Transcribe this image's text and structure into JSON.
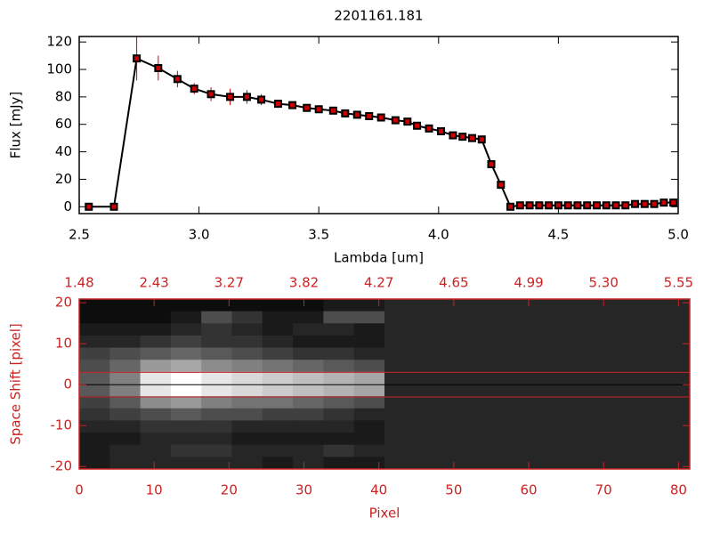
{
  "chart_data": [
    {
      "type": "line",
      "title": "2201161.181",
      "xlabel": "Lambda [um]",
      "ylabel": "Flux [mJy]",
      "x": [
        2.54,
        2.645,
        2.74,
        2.83,
        2.91,
        2.98,
        3.05,
        3.13,
        3.2,
        3.26,
        3.33,
        3.39,
        3.45,
        3.5,
        3.56,
        3.61,
        3.66,
        3.71,
        3.76,
        3.82,
        3.87,
        3.91,
        3.96,
        4.01,
        4.06,
        4.1,
        4.14,
        4.18,
        4.22,
        4.26,
        4.3,
        4.34,
        4.38,
        4.42,
        4.46,
        4.5,
        4.54,
        4.58,
        4.62,
        4.66,
        4.7,
        4.74,
        4.78,
        4.82,
        4.86,
        4.9,
        4.94,
        4.98
      ],
      "values": [
        0,
        0,
        108,
        101,
        93,
        86,
        82,
        80,
        80,
        78,
        75,
        74,
        72,
        71,
        70,
        68,
        67,
        66,
        65,
        63,
        62,
        59,
        57,
        55,
        52,
        51,
        50,
        49,
        31,
        16,
        0,
        1,
        1,
        1,
        1,
        1,
        1,
        1,
        1,
        1,
        1,
        1,
        1,
        2,
        2,
        2,
        3,
        3
      ],
      "errors": [
        1,
        1,
        16,
        9,
        6,
        4,
        5,
        6,
        5,
        4,
        3,
        2,
        2,
        2,
        2,
        2,
        2,
        2,
        2,
        2,
        2,
        2,
        2,
        2,
        2,
        2,
        2,
        2,
        2,
        2,
        1,
        1,
        1,
        1,
        1,
        1,
        1,
        1,
        1,
        1,
        1,
        1,
        1,
        1,
        1,
        1,
        2,
        2
      ],
      "color": "#000000",
      "marker_color": "#cc0000",
      "error_color": "#cc0000",
      "xlim": [
        2.5,
        5.0
      ],
      "xticks": [
        2.5,
        {
          "value": 3,
          "label": "3.0"
        },
        3.5,
        {
          "value": 4,
          "label": "4.0"
        },
        4.5,
        {
          "value": 5,
          "label": "5.0"
        }
      ],
      "ylim": [
        -5,
        124
      ],
      "yticks": [
        0,
        20,
        40,
        60,
        80,
        100,
        120
      ]
    },
    {
      "type": "heatmap",
      "xlabel": "Pixel",
      "ylabel": "Space Shift [pixel]",
      "axis_color": "#cc2222",
      "colormap": "gray",
      "xlim": [
        0,
        81.5
      ],
      "xticks": [
        0,
        10,
        20,
        30,
        40,
        50,
        60,
        70,
        80
      ],
      "x2ticks": [
        {
          "value": 0,
          "label": "1.48"
        },
        {
          "value": 10,
          "label": "2.43"
        },
        {
          "value": 20,
          "label": "3.27"
        },
        {
          "value": 30,
          "label": "3.82"
        },
        {
          "value": 40,
          "label": "4.27"
        },
        {
          "value": 50,
          "label": "4.65"
        },
        {
          "value": 60,
          "label": "4.99"
        },
        {
          "value": 70,
          "label": "5.30"
        },
        {
          "value": 80,
          "label": "5.55"
        }
      ],
      "ylim": [
        -20.6,
        20.9
      ],
      "yticks": [
        -20,
        -10,
        0,
        10,
        20
      ],
      "hlines": [
        {
          "value": 3,
          "color": "#cc2222"
        },
        {
          "value": -3,
          "color": "#cc2222"
        },
        {
          "value": 0,
          "color": "#000000"
        }
      ],
      "z": [
        [
          0.05,
          0.05,
          0.05,
          0.05,
          0.05,
          0.05,
          0.05,
          0.05,
          0.1,
          0.1,
          0.15,
          0.15,
          0.15,
          0.15,
          0.15,
          0.15,
          0.15,
          0.15,
          0.15,
          0.15
        ],
        [
          0.05,
          0.05,
          0.05,
          0.1,
          0.3,
          0.2,
          0.1,
          0.1,
          0.3,
          0.3,
          0.15,
          0.15,
          0.15,
          0.15,
          0.15,
          0.15,
          0.15,
          0.15,
          0.15,
          0.15
        ],
        [
          0.1,
          0.1,
          0.1,
          0.15,
          0.2,
          0.15,
          0.1,
          0.15,
          0.15,
          0.1,
          0.15,
          0.15,
          0.15,
          0.15,
          0.15,
          0.15,
          0.15,
          0.15,
          0.15,
          0.15
        ],
        [
          0.15,
          0.15,
          0.2,
          0.25,
          0.2,
          0.2,
          0.15,
          0.1,
          0.1,
          0.1,
          0.15,
          0.15,
          0.15,
          0.15,
          0.15,
          0.15,
          0.15,
          0.15,
          0.15,
          0.15
        ],
        [
          0.25,
          0.3,
          0.35,
          0.4,
          0.35,
          0.3,
          0.25,
          0.2,
          0.2,
          0.15,
          0.15,
          0.15,
          0.15,
          0.15,
          0.15,
          0.15,
          0.15,
          0.15,
          0.15,
          0.15
        ],
        [
          0.3,
          0.4,
          0.6,
          0.65,
          0.55,
          0.5,
          0.45,
          0.4,
          0.35,
          0.3,
          0.15,
          0.15,
          0.15,
          0.15,
          0.15,
          0.15,
          0.15,
          0.15,
          0.15,
          0.15
        ],
        [
          0.35,
          0.5,
          0.9,
          1,
          0.9,
          0.85,
          0.8,
          0.75,
          0.7,
          0.65,
          0.15,
          0.15,
          0.15,
          0.15,
          0.15,
          0.15,
          0.15,
          0.15,
          0.15,
          0.15
        ],
        [
          0.35,
          0.5,
          0.9,
          1,
          0.9,
          0.85,
          0.8,
          0.75,
          0.7,
          0.65,
          0.15,
          0.15,
          0.15,
          0.15,
          0.15,
          0.15,
          0.15,
          0.15,
          0.15,
          0.15
        ],
        [
          0.25,
          0.35,
          0.55,
          0.6,
          0.5,
          0.45,
          0.45,
          0.4,
          0.35,
          0.3,
          0.15,
          0.15,
          0.15,
          0.15,
          0.15,
          0.15,
          0.15,
          0.15,
          0.15,
          0.15
        ],
        [
          0.2,
          0.25,
          0.3,
          0.35,
          0.3,
          0.3,
          0.25,
          0.25,
          0.2,
          0.15,
          0.15,
          0.15,
          0.15,
          0.15,
          0.15,
          0.15,
          0.15,
          0.15,
          0.15,
          0.15
        ],
        [
          0.15,
          0.15,
          0.2,
          0.2,
          0.2,
          0.15,
          0.15,
          0.15,
          0.15,
          0.1,
          0.15,
          0.15,
          0.15,
          0.15,
          0.15,
          0.15,
          0.15,
          0.15,
          0.15,
          0.15
        ],
        [
          0.1,
          0.1,
          0.15,
          0.15,
          0.15,
          0.1,
          0.1,
          0.1,
          0.1,
          0.1,
          0.15,
          0.15,
          0.15,
          0.15,
          0.15,
          0.15,
          0.15,
          0.15,
          0.15,
          0.15
        ],
        [
          0.1,
          0.15,
          0.15,
          0.2,
          0.2,
          0.15,
          0.15,
          0.15,
          0.2,
          0.15,
          0.15,
          0.15,
          0.15,
          0.15,
          0.15,
          0.15,
          0.15,
          0.15,
          0.15,
          0.15
        ],
        [
          0.1,
          0.15,
          0.15,
          0.15,
          0.15,
          0.15,
          0.1,
          0.15,
          0.1,
          0.1,
          0.15,
          0.15,
          0.15,
          0.15,
          0.15,
          0.15,
          0.15,
          0.15,
          0.15,
          0.15
        ]
      ]
    }
  ]
}
